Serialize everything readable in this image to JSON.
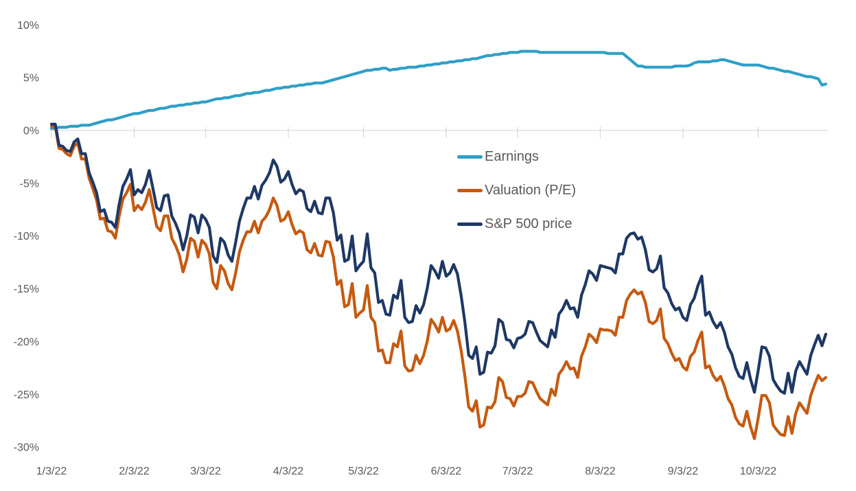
{
  "chart_data": {
    "type": "line",
    "unit": "%",
    "grid": "zero-line-only",
    "legend_position": "center-right",
    "y_axis": {
      "ticks": [
        10,
        5,
        0,
        -5,
        -10,
        -15,
        -20,
        -25,
        -30
      ],
      "tick_suffix": "%",
      "min": -30,
      "max": 10
    },
    "x_axis": {
      "tick_labels": [
        "1/3/22",
        "2/3/22",
        "3/3/22",
        "4/3/22",
        "5/3/22",
        "6/3/22",
        "7/3/22",
        "8/3/22",
        "9/3/22",
        "10/3/22"
      ],
      "tick_indices": [
        0,
        22,
        41,
        63,
        83,
        105,
        124,
        146,
        168,
        188
      ]
    },
    "dates": [
      "1/3",
      "1/4",
      "1/5",
      "1/6",
      "1/7",
      "1/10",
      "1/11",
      "1/12",
      "1/13",
      "1/14",
      "1/18",
      "1/19",
      "1/20",
      "1/21",
      "1/24",
      "1/25",
      "1/26",
      "1/27",
      "1/28",
      "1/31",
      "2/1",
      "2/2",
      "2/3",
      "2/4",
      "2/7",
      "2/8",
      "2/9",
      "2/10",
      "2/11",
      "2/14",
      "2/15",
      "2/16",
      "2/17",
      "2/18",
      "2/22",
      "2/23",
      "2/24",
      "2/25",
      "2/28",
      "3/1",
      "3/2",
      "3/3",
      "3/4",
      "3/7",
      "3/8",
      "3/9",
      "3/10",
      "3/11",
      "3/14",
      "3/15",
      "3/16",
      "3/17",
      "3/18",
      "3/21",
      "3/22",
      "3/23",
      "3/24",
      "3/25",
      "3/28",
      "3/29",
      "3/30",
      "3/31",
      "4/1",
      "4/4",
      "4/5",
      "4/6",
      "4/7",
      "4/8",
      "4/11",
      "4/12",
      "4/13",
      "4/14",
      "4/18",
      "4/19",
      "4/20",
      "4/21",
      "4/22",
      "4/25",
      "4/26",
      "4/27",
      "4/28",
      "4/29",
      "5/2",
      "5/3",
      "5/4",
      "5/5",
      "5/6",
      "5/9",
      "5/10",
      "5/11",
      "5/12",
      "5/13",
      "5/16",
      "5/17",
      "5/18",
      "5/19",
      "5/20",
      "5/23",
      "5/24",
      "5/25",
      "5/26",
      "5/27",
      "5/31",
      "6/1",
      "6/2",
      "6/3",
      "6/6",
      "6/7",
      "6/8",
      "6/9",
      "6/10",
      "6/13",
      "6/14",
      "6/15",
      "6/16",
      "6/17",
      "6/21",
      "6/22",
      "6/23",
      "6/24",
      "6/27",
      "6/28",
      "6/29",
      "6/30",
      "7/1",
      "7/5",
      "7/6",
      "7/7",
      "7/8",
      "7/11",
      "7/12",
      "7/13",
      "7/14",
      "7/15",
      "7/18",
      "7/19",
      "7/20",
      "7/21",
      "7/22",
      "7/25",
      "7/26",
      "7/27",
      "7/28",
      "7/29",
      "8/1",
      "8/2",
      "8/3",
      "8/4",
      "8/5",
      "8/8",
      "8/9",
      "8/10",
      "8/11",
      "8/12",
      "8/15",
      "8/16",
      "8/17",
      "8/18",
      "8/19",
      "8/22",
      "8/23",
      "8/24",
      "8/25",
      "8/26",
      "8/29",
      "8/30",
      "8/31",
      "9/1",
      "9/2",
      "9/6",
      "9/7",
      "9/8",
      "9/9",
      "9/12",
      "9/13",
      "9/14",
      "9/15",
      "9/16",
      "9/19",
      "9/20",
      "9/21",
      "9/22",
      "9/23",
      "9/26",
      "9/27",
      "9/28",
      "9/29",
      "9/30",
      "10/3",
      "10/4",
      "10/5",
      "10/6",
      "10/7",
      "10/10",
      "10/11",
      "10/12",
      "10/13",
      "10/14",
      "10/17",
      "10/18",
      "10/19",
      "10/20",
      "10/21",
      "10/24",
      "10/25",
      "10/26",
      "10/27"
    ],
    "series": [
      {
        "name": "Earnings",
        "color": "#2E9FC6",
        "values": [
          0.2,
          0.2,
          0.3,
          0.3,
          0.3,
          0.4,
          0.4,
          0.4,
          0.5,
          0.5,
          0.5,
          0.6,
          0.7,
          0.8,
          0.9,
          1.0,
          1.0,
          1.1,
          1.2,
          1.3,
          1.4,
          1.5,
          1.6,
          1.6,
          1.7,
          1.8,
          1.9,
          1.9,
          2.0,
          2.1,
          2.1,
          2.2,
          2.3,
          2.3,
          2.4,
          2.4,
          2.5,
          2.5,
          2.6,
          2.6,
          2.7,
          2.7,
          2.8,
          2.9,
          3.0,
          3.0,
          3.1,
          3.1,
          3.2,
          3.3,
          3.3,
          3.4,
          3.5,
          3.5,
          3.6,
          3.6,
          3.7,
          3.8,
          3.8,
          3.9,
          4.0,
          4.0,
          4.1,
          4.1,
          4.2,
          4.2,
          4.3,
          4.3,
          4.4,
          4.4,
          4.5,
          4.5,
          4.5,
          4.6,
          4.7,
          4.8,
          4.9,
          5.0,
          5.1,
          5.2,
          5.3,
          5.4,
          5.5,
          5.6,
          5.7,
          5.7,
          5.8,
          5.8,
          5.9,
          5.9,
          5.7,
          5.8,
          5.8,
          5.9,
          5.9,
          6.0,
          6.0,
          6.0,
          6.1,
          6.1,
          6.2,
          6.2,
          6.3,
          6.3,
          6.4,
          6.4,
          6.5,
          6.5,
          6.6,
          6.6,
          6.7,
          6.7,
          6.8,
          6.8,
          6.9,
          7.0,
          7.1,
          7.1,
          7.2,
          7.2,
          7.3,
          7.3,
          7.4,
          7.4,
          7.4,
          7.5,
          7.5,
          7.5,
          7.5,
          7.5,
          7.4,
          7.4,
          7.4,
          7.4,
          7.4,
          7.4,
          7.4,
          7.4,
          7.4,
          7.4,
          7.4,
          7.4,
          7.4,
          7.4,
          7.4,
          7.4,
          7.4,
          7.4,
          7.3,
          7.3,
          7.3,
          7.3,
          7.3,
          7.0,
          6.7,
          6.4,
          6.1,
          6.1,
          6.0,
          6.0,
          6.0,
          6.0,
          6.0,
          6.0,
          6.0,
          6.0,
          6.1,
          6.1,
          6.1,
          6.1,
          6.2,
          6.4,
          6.5,
          6.5,
          6.5,
          6.5,
          6.6,
          6.6,
          6.7,
          6.7,
          6.6,
          6.5,
          6.4,
          6.3,
          6.2,
          6.2,
          6.2,
          6.2,
          6.2,
          6.1,
          6.0,
          5.9,
          5.9,
          5.8,
          5.7,
          5.6,
          5.6,
          5.5,
          5.4,
          5.3,
          5.2,
          5.1,
          5.1,
          5.0,
          4.9,
          4.3,
          4.4
        ]
      },
      {
        "name": "Valuation (P/E)",
        "color": "#C55A11",
        "values": [
          0.4,
          0.4,
          -1.7,
          -1.8,
          -2.2,
          -2.4,
          -1.5,
          -1.2,
          -2.7,
          -2.7,
          -4.5,
          -5.5,
          -6.6,
          -8.4,
          -8.3,
          -9.5,
          -9.6,
          -10.2,
          -8.1,
          -6.5,
          -5.9,
          -5.1,
          -7.6,
          -7.1,
          -7.5,
          -6.8,
          -5.6,
          -7.3,
          -9.1,
          -9.5,
          -8.1,
          -8.1,
          -10.2,
          -10.9,
          -11.8,
          -13.4,
          -12.2,
          -10.2,
          -10.5,
          -12.0,
          -10.4,
          -10.8,
          -11.7,
          -14.4,
          -15.0,
          -12.8,
          -13.3,
          -14.5,
          -15.1,
          -13.5,
          -11.5,
          -10.4,
          -9.6,
          -9.6,
          -8.6,
          -9.7,
          -8.6,
          -8.2,
          -7.5,
          -6.4,
          -7.1,
          -8.6,
          -8.4,
          -7.7,
          -8.9,
          -9.8,
          -9.5,
          -9.7,
          -11.3,
          -11.6,
          -10.7,
          -11.8,
          -11.9,
          -10.5,
          -10.6,
          -12.0,
          -14.6,
          -14.2,
          -16.7,
          -16.5,
          -14.5,
          -17.7,
          -17.3,
          -17.0,
          -14.7,
          -17.7,
          -18.2,
          -20.9,
          -20.8,
          -22.0,
          -22.0,
          -20.2,
          -20.5,
          -19.0,
          -22.3,
          -22.8,
          -22.7,
          -21.3,
          -22.1,
          -21.3,
          -19.9,
          -17.9,
          -18.4,
          -19.1,
          -17.7,
          -19.0,
          -18.8,
          -18.0,
          -19.0,
          -20.9,
          -23.3,
          -26.2,
          -26.6,
          -25.6,
          -28.1,
          -27.9,
          -26.2,
          -26.3,
          -25.7,
          -23.4,
          -23.8,
          -25.3,
          -25.4,
          -26.1,
          -25.2,
          -25.2,
          -24.9,
          -23.8,
          -23.9,
          -24.7,
          -25.4,
          -25.7,
          -26.0,
          -24.5,
          -25.1,
          -23.1,
          -22.6,
          -21.9,
          -22.6,
          -22.5,
          -23.4,
          -21.4,
          -20.5,
          -19.3,
          -19.6,
          -20.1,
          -18.8,
          -18.9,
          -18.9,
          -19.0,
          -19.4,
          -17.7,
          -17.7,
          -16.1,
          -15.5,
          -15.1,
          -15.5,
          -15.3,
          -16.3,
          -18.1,
          -18.3,
          -18.0,
          -16.9,
          -19.7,
          -20.2,
          -21.1,
          -21.8,
          -21.6,
          -22.4,
          -22.7,
          -21.4,
          -21.0,
          -19.9,
          -19.1,
          -22.5,
          -22.3,
          -23.2,
          -23.7,
          -23.3,
          -24.2,
          -25.4,
          -26.0,
          -27.2,
          -27.8,
          -28.0,
          -26.6,
          -28.1,
          -29.2,
          -27.3,
          -25.1,
          -25.1,
          -25.8,
          -27.9,
          -28.4,
          -28.8,
          -28.9,
          -27.1,
          -28.7,
          -26.8,
          -25.8,
          -26.3,
          -26.8,
          -25.1,
          -24.1,
          -23.2,
          -23.7,
          -23.4
        ]
      },
      {
        "name": "S&P 500 price",
        "color": "#1F3864",
        "values": [
          0.6,
          0.6,
          -1.4,
          -1.5,
          -1.9,
          -2.0,
          -1.1,
          -0.8,
          -2.2,
          -2.2,
          -4.0,
          -4.9,
          -5.9,
          -7.7,
          -7.5,
          -8.6,
          -8.7,
          -9.2,
          -7.0,
          -5.3,
          -4.6,
          -3.7,
          -6.1,
          -5.6,
          -5.9,
          -5.1,
          -3.8,
          -5.5,
          -7.3,
          -7.6,
          -6.2,
          -6.1,
          -8.1,
          -8.8,
          -9.7,
          -11.3,
          -10.0,
          -8.0,
          -8.2,
          -9.7,
          -8.0,
          -8.4,
          -9.2,
          -11.9,
          -12.5,
          -10.2,
          -10.6,
          -11.8,
          -12.4,
          -10.6,
          -8.6,
          -7.4,
          -6.4,
          -6.4,
          -5.3,
          -6.5,
          -5.2,
          -4.7,
          -4.0,
          -2.8,
          -3.4,
          -4.9,
          -4.6,
          -3.9,
          -5.1,
          -6.0,
          -5.6,
          -5.8,
          -7.4,
          -7.7,
          -6.7,
          -7.8,
          -7.9,
          -6.4,
          -6.4,
          -7.8,
          -10.4,
          -9.9,
          -12.4,
          -12.2,
          -10.0,
          -13.3,
          -12.8,
          -12.4,
          -9.8,
          -13.0,
          -13.5,
          -16.3,
          -16.1,
          -17.4,
          -17.5,
          -15.6,
          -15.9,
          -14.2,
          -17.7,
          -18.2,
          -18.1,
          -16.6,
          -17.3,
          -16.5,
          -14.9,
          -12.8,
          -13.3,
          -14.0,
          -12.4,
          -13.8,
          -13.5,
          -12.7,
          -13.6,
          -15.7,
          -18.2,
          -21.3,
          -21.6,
          -20.5,
          -23.1,
          -22.9,
          -21.0,
          -21.1,
          -20.4,
          -17.9,
          -18.2,
          -19.8,
          -19.9,
          -20.6,
          -19.7,
          -19.6,
          -19.3,
          -18.1,
          -18.2,
          -19.1,
          -19.9,
          -20.2,
          -20.5,
          -18.9,
          -19.6,
          -17.4,
          -16.9,
          -16.1,
          -16.9,
          -16.8,
          -17.7,
          -15.6,
          -14.6,
          -13.3,
          -13.6,
          -14.2,
          -12.8,
          -12.9,
          -13.0,
          -13.1,
          -13.5,
          -11.7,
          -11.7,
          -10.2,
          -9.8,
          -9.7,
          -10.3,
          -10.1,
          -11.3,
          -13.2,
          -13.4,
          -13.1,
          -11.9,
          -14.9,
          -15.4,
          -16.4,
          -17.0,
          -16.8,
          -17.7,
          -18.0,
          -16.5,
          -15.9,
          -14.7,
          -13.8,
          -17.5,
          -17.2,
          -18.1,
          -18.7,
          -18.2,
          -19.1,
          -20.5,
          -21.2,
          -22.5,
          -23.3,
          -23.5,
          -22.0,
          -23.6,
          -24.8,
          -22.8,
          -20.5,
          -20.6,
          -21.4,
          -23.6,
          -24.2,
          -24.7,
          -24.9,
          -23.0,
          -24.8,
          -22.8,
          -21.9,
          -22.5,
          -23.1,
          -21.3,
          -20.3,
          -19.4,
          -20.4,
          -19.3
        ]
      }
    ]
  },
  "legend": {
    "items": [
      "Earnings",
      "Valuation (P/E)",
      "S&P 500 price"
    ]
  },
  "colors": {
    "earnings_line": "#2E9FC6",
    "valuation_line": "#C55A11",
    "price_line": "#1F3864",
    "axis_text": "#595959",
    "gridline": "#D9D9D9",
    "background": "#FFFFFF"
  }
}
